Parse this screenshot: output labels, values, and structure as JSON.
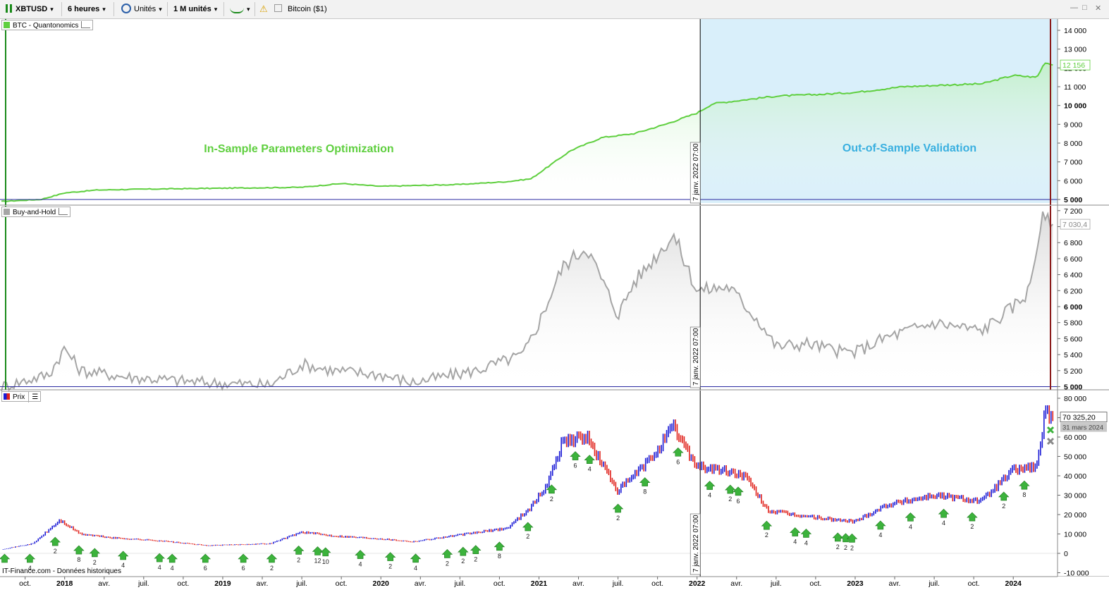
{
  "toolbar": {
    "symbol": "XBTUSD",
    "timeframe": "6 heures",
    "units_mode": "Unités",
    "units_count": "1 M unités",
    "instrument_name": "Bitcoin ($1)",
    "window_controls": [
      "—",
      "□",
      "✕"
    ]
  },
  "colors": {
    "strategy_line": "#5fcf3f",
    "buyhold_line": "#a5a5a5",
    "oos_band": "#d9effa",
    "bull_candle": "#1a1ad6",
    "bear_candle": "#e0201a",
    "split_line": "#000000",
    "start_line": "#1a8a1a",
    "end_line": "#8b1a1a",
    "signal_arrow": "#3cb33c"
  },
  "chart_data": [
    {
      "type": "area",
      "label": "BTC - Quantonomics",
      "ylim": [
        4700,
        14600
      ],
      "yticks": [
        5000,
        6000,
        7000,
        8000,
        9000,
        10000,
        11000,
        12000,
        13000,
        14000
      ],
      "ytick_labels": [
        "5 000",
        "6 000",
        "7 000",
        "8 000",
        "9 000",
        "10 000",
        "11 000",
        "12 000",
        "13 000",
        "14 000"
      ],
      "last_value_label": "12 156",
      "annotations": [
        "In-Sample Parameters Optimization",
        "Out-of-Sample Validation"
      ],
      "split_label": "7 janv. 2022 07:00",
      "x": [
        2017.6,
        2017.85,
        2018.0,
        2018.2,
        2018.5,
        2019.0,
        2019.5,
        2019.75,
        2020.0,
        2020.5,
        2020.8,
        2020.95,
        2021.05,
        2021.2,
        2021.4,
        2021.6,
        2021.8,
        2022.0,
        2022.1,
        2022.2,
        2022.5,
        2022.8,
        2023.0,
        2023.3,
        2023.6,
        2023.8,
        2024.0,
        2024.15,
        2024.2,
        2024.25
      ],
      "y": [
        4900,
        5000,
        5350,
        5500,
        5550,
        5600,
        5650,
        5850,
        5700,
        5800,
        5950,
        6100,
        6700,
        7600,
        8300,
        8500,
        9000,
        9600,
        10100,
        10200,
        10500,
        10600,
        10700,
        11000,
        11100,
        11150,
        11600,
        11500,
        12300,
        12156
      ]
    },
    {
      "type": "area",
      "label": "Buy-and-Hold",
      "ylim": [
        4960,
        7260
      ],
      "yticks": [
        5000,
        5200,
        5400,
        5600,
        5800,
        6000,
        6200,
        6400,
        6600,
        6800,
        7000,
        7200
      ],
      "ytick_labels": [
        "5 000",
        "5 200",
        "5 400",
        "5 600",
        "5 800",
        "6 000",
        "6 200",
        "6 400",
        "6 600",
        "6 800",
        "7 000",
        "7 200"
      ],
      "last_value_label": "7 030,4",
      "split_label": "7 janv. 2022 07:00",
      "x": [
        2017.6,
        2017.9,
        2018.0,
        2018.1,
        2018.4,
        2018.9,
        2019.3,
        2019.5,
        2019.7,
        2020.0,
        2020.2,
        2020.6,
        2020.9,
        2021.0,
        2021.15,
        2021.3,
        2021.5,
        2021.6,
        2021.85,
        2022.0,
        2022.2,
        2022.4,
        2022.5,
        2022.7,
        2022.9,
        2023.0,
        2023.2,
        2023.5,
        2023.8,
        2024.0,
        2024.1,
        2024.18,
        2024.25
      ],
      "y": [
        5000,
        5150,
        5480,
        5200,
        5120,
        5050,
        5020,
        5280,
        5200,
        5150,
        5050,
        5200,
        5400,
        5800,
        6500,
        6750,
        5900,
        6300,
        6900,
        6200,
        6250,
        5800,
        5500,
        5540,
        5440,
        5430,
        5620,
        5800,
        5700,
        6000,
        6200,
        7100,
        7030
      ]
    },
    {
      "type": "line",
      "label": "Prix",
      "ylim": [
        -12000,
        84000
      ],
      "yticks": [
        -10000,
        0,
        10000,
        20000,
        30000,
        40000,
        50000,
        60000,
        70000,
        80000
      ],
      "ytick_labels": [
        "-10 000",
        "0",
        "10 000",
        "20 000",
        "30 000",
        "40 000",
        "50 000",
        "60 000",
        "70 000",
        "80 000"
      ],
      "last_value_label": "70 325,20",
      "last_date_label": "31 mars 2024",
      "split_label": "7 janv. 2022 07:00",
      "source": "IT-Finance.com - Données historiques",
      "x": [
        2017.6,
        2017.8,
        2017.97,
        2018.1,
        2018.3,
        2018.6,
        2018.9,
        2019.3,
        2019.5,
        2019.7,
        2020.0,
        2020.2,
        2020.5,
        2020.8,
        2020.95,
        2021.05,
        2021.15,
        2021.3,
        2021.5,
        2021.7,
        2021.85,
        2022.0,
        2022.2,
        2022.3,
        2022.45,
        2022.6,
        2022.9,
        2023.0,
        2023.2,
        2023.5,
        2023.8,
        2024.0,
        2024.15,
        2024.2,
        2024.25
      ],
      "y": [
        2000,
        5000,
        17000,
        10000,
        8000,
        6500,
        4000,
        5000,
        11000,
        9000,
        7500,
        6000,
        9500,
        13000,
        24000,
        35000,
        58000,
        60000,
        32000,
        48000,
        65000,
        45000,
        42000,
        40000,
        22000,
        20000,
        17000,
        16500,
        25000,
        30000,
        27000,
        43000,
        45000,
        72000,
        70325
      ]
    }
  ],
  "time_axis": {
    "ticks": [
      {
        "x": 2017.75,
        "label": "oct.",
        "bold": false
      },
      {
        "x": 2018.0,
        "label": "2018",
        "bold": true
      },
      {
        "x": 2018.25,
        "label": "avr.",
        "bold": false
      },
      {
        "x": 2018.5,
        "label": "juil.",
        "bold": false
      },
      {
        "x": 2018.75,
        "label": "oct.",
        "bold": false
      },
      {
        "x": 2019.0,
        "label": "2019",
        "bold": true
      },
      {
        "x": 2019.25,
        "label": "avr.",
        "bold": false
      },
      {
        "x": 2019.5,
        "label": "juil.",
        "bold": false
      },
      {
        "x": 2019.75,
        "label": "oct.",
        "bold": false
      },
      {
        "x": 2020.0,
        "label": "2020",
        "bold": true
      },
      {
        "x": 2020.25,
        "label": "avr.",
        "bold": false
      },
      {
        "x": 2020.5,
        "label": "juil.",
        "bold": false
      },
      {
        "x": 2020.75,
        "label": "oct.",
        "bold": false
      },
      {
        "x": 2021.0,
        "label": "2021",
        "bold": true
      },
      {
        "x": 2021.25,
        "label": "avr.",
        "bold": false
      },
      {
        "x": 2021.5,
        "label": "juil.",
        "bold": false
      },
      {
        "x": 2021.75,
        "label": "oct.",
        "bold": false
      },
      {
        "x": 2022.0,
        "label": "2022",
        "bold": true
      },
      {
        "x": 2022.25,
        "label": "avr.",
        "bold": false
      },
      {
        "x": 2022.5,
        "label": "juil.",
        "bold": false
      },
      {
        "x": 2022.75,
        "label": "oct.",
        "bold": false
      },
      {
        "x": 2023.0,
        "label": "2023",
        "bold": true
      },
      {
        "x": 2023.25,
        "label": "avr.",
        "bold": false
      },
      {
        "x": 2023.5,
        "label": "juil.",
        "bold": false
      },
      {
        "x": 2023.75,
        "label": "oct.",
        "bold": false
      },
      {
        "x": 2024.0,
        "label": "2024",
        "bold": true
      }
    ]
  },
  "signals": [
    {
      "x": 2017.62,
      "label": ""
    },
    {
      "x": 2017.78,
      "label": "4"
    },
    {
      "x": 2017.94,
      "label": "2"
    },
    {
      "x": 2018.09,
      "label": "8"
    },
    {
      "x": 2018.19,
      "label": "2"
    },
    {
      "x": 2018.37,
      "label": "4"
    },
    {
      "x": 2018.6,
      "label": "4"
    },
    {
      "x": 2018.68,
      "label": "4"
    },
    {
      "x": 2018.89,
      "label": "6"
    },
    {
      "x": 2019.13,
      "label": "6"
    },
    {
      "x": 2019.31,
      "label": "2"
    },
    {
      "x": 2019.48,
      "label": "2"
    },
    {
      "x": 2019.6,
      "label": "12"
    },
    {
      "x": 2019.65,
      "label": "10"
    },
    {
      "x": 2019.87,
      "label": "4"
    },
    {
      "x": 2020.06,
      "label": "2"
    },
    {
      "x": 2020.22,
      "label": "4"
    },
    {
      "x": 2020.42,
      "label": "2"
    },
    {
      "x": 2020.52,
      "label": "2"
    },
    {
      "x": 2020.6,
      "label": "2"
    },
    {
      "x": 2020.75,
      "label": "8"
    },
    {
      "x": 2020.93,
      "label": "2"
    },
    {
      "x": 2021.08,
      "label": "2"
    },
    {
      "x": 2021.23,
      "label": "6"
    },
    {
      "x": 2021.32,
      "label": "4"
    },
    {
      "x": 2021.5,
      "label": "2"
    },
    {
      "x": 2021.67,
      "label": "8"
    },
    {
      "x": 2021.88,
      "label": "6"
    },
    {
      "x": 2022.08,
      "label": "4"
    },
    {
      "x": 2022.21,
      "label": "2"
    },
    {
      "x": 2022.26,
      "label": "6"
    },
    {
      "x": 2022.44,
      "label": "2"
    },
    {
      "x": 2022.62,
      "label": "4"
    },
    {
      "x": 2022.69,
      "label": "4"
    },
    {
      "x": 2022.89,
      "label": "2"
    },
    {
      "x": 2022.94,
      "label": "2"
    },
    {
      "x": 2022.98,
      "label": "2"
    },
    {
      "x": 2023.16,
      "label": "4"
    },
    {
      "x": 2023.35,
      "label": "4"
    },
    {
      "x": 2023.56,
      "label": "4"
    },
    {
      "x": 2023.74,
      "label": "2"
    },
    {
      "x": 2023.94,
      "label": "2"
    },
    {
      "x": 2024.07,
      "label": "8"
    }
  ]
}
